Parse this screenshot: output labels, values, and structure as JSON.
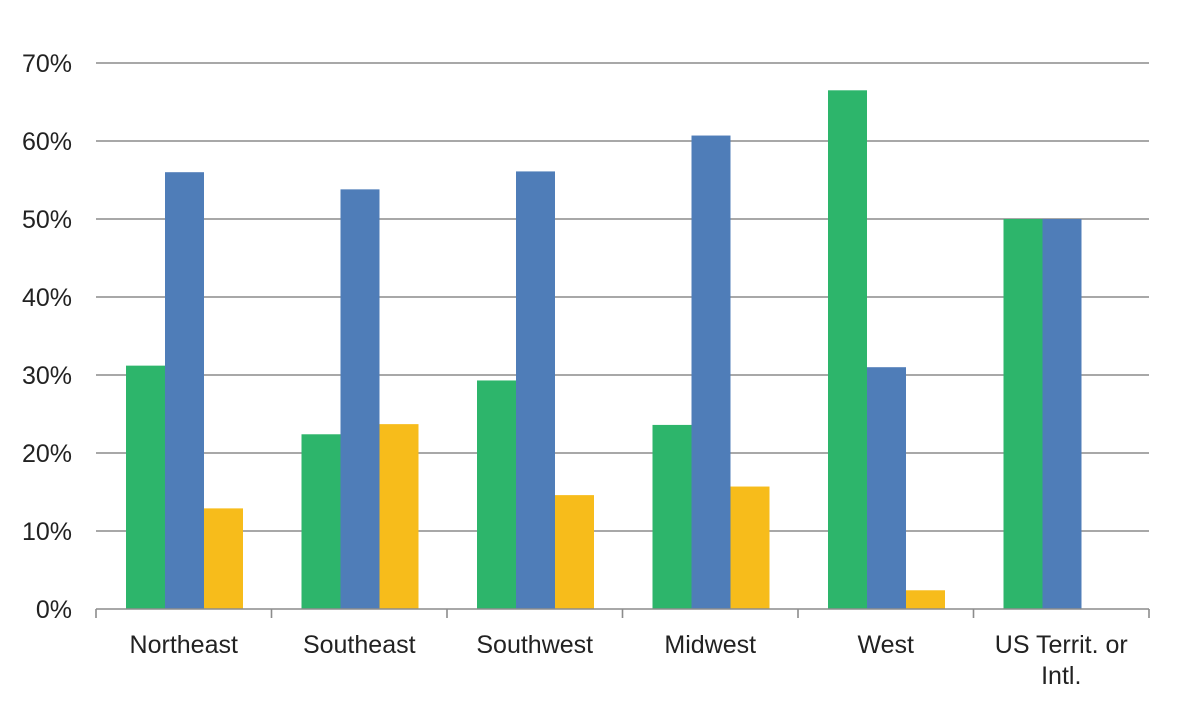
{
  "chart_data": {
    "type": "bar",
    "categories": [
      [
        "Northeast"
      ],
      [
        "Southeast"
      ],
      [
        "Southwest"
      ],
      [
        "Midwest"
      ],
      [
        "West"
      ],
      [
        "US Territ. or",
        "Intl."
      ]
    ],
    "series": [
      {
        "values": [
          31.2,
          22.4,
          29.3,
          23.6,
          66.5,
          50.0
        ],
        "color": "#2db56b"
      },
      {
        "values": [
          56.0,
          53.8,
          56.1,
          60.7,
          31.0,
          50.0
        ],
        "color": "#4f7db8"
      },
      {
        "values": [
          12.9,
          23.7,
          14.6,
          15.7,
          2.4,
          0.0
        ],
        "color": "#f7bc1b"
      }
    ],
    "y_ticks": [
      "0%",
      "10%",
      "20%",
      "30%",
      "40%",
      "50%",
      "60%",
      "70%"
    ],
    "ylim": [
      0,
      70
    ],
    "grid": true,
    "legend": "none"
  }
}
